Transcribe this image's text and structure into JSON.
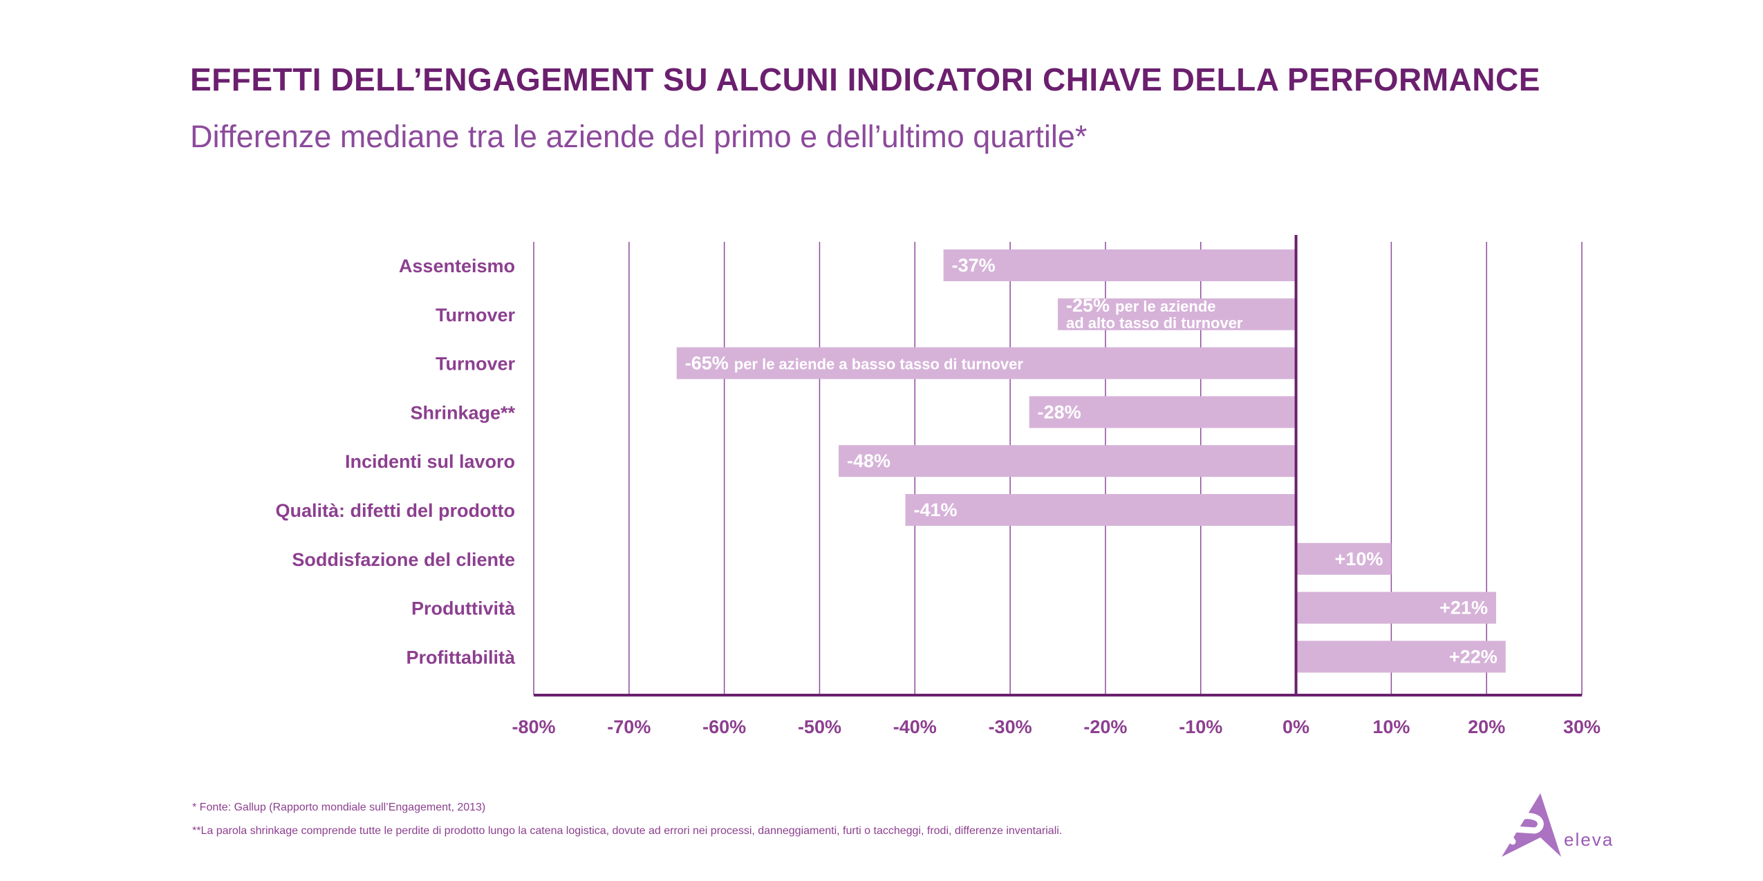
{
  "header": {
    "title": "EFFETTI DELL’ENGAGEMENT SU ALCUNI INDICATORI CHIAVE DELLA PERFORMANCE",
    "subtitle": "Differenze mediane tra le aziende del primo e dell’ultimo quartile*"
  },
  "chart_data": {
    "type": "bar",
    "orientation": "horizontal",
    "categories": [
      "Assenteismo",
      "Turnover",
      "Turnover",
      "Shrinkage**",
      "Incidenti sul lavoro",
      "Qualità: difetti del prodotto",
      "Soddisfazione del cliente",
      "Produttività",
      "Profittabilità"
    ],
    "values": [
      -37,
      -25,
      -65,
      -28,
      -48,
      -41,
      10,
      21,
      22
    ],
    "value_labels": [
      "-37%",
      "-25%",
      "-65%",
      "-28%",
      "-48%",
      "-41%",
      "+10%",
      "+21%",
      "+22%"
    ],
    "bar_notes": [
      [],
      [
        "per le aziende",
        "ad alto tasso di turnover"
      ],
      [
        "per le aziende a basso tasso di turnover"
      ],
      [],
      [],
      [],
      [],
      [],
      []
    ],
    "x_ticks": [
      "-80%",
      "-70%",
      "-60%",
      "-50%",
      "-40%",
      "-30%",
      "-20%",
      "-10%",
      "0%",
      "10%",
      "20%",
      "30%"
    ],
    "xlim": [
      -80,
      30
    ],
    "grid": "vertical",
    "colors": {
      "bar": "#d6b2d8",
      "axis": "#6b1f6e",
      "grid": "#8c4a9c",
      "label": "#8c3f8f"
    }
  },
  "footnotes": {
    "source": "* Fonte: Gallup (Rapporto mondiale sull’Engagement, 2013)",
    "shrinkage": "**La parola shrinkage comprende tutte le perdite di prodotto lungo la catena logistica, dovute ad errori nei processi, danneggiamenti, furti o taccheggi, frodi, differenze inventariali."
  },
  "logo": {
    "text": "eleva",
    "icon": "eleva-arrow-logo-icon",
    "color": "#9b59b6"
  }
}
